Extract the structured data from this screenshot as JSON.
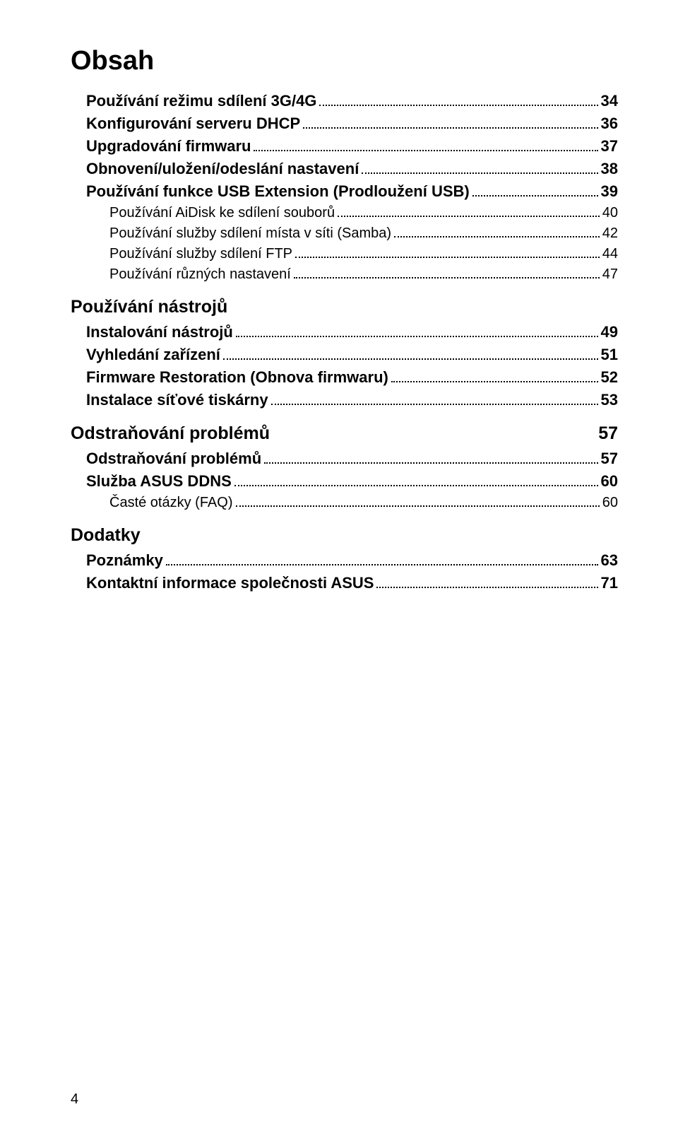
{
  "title": "Obsah",
  "page_number": "4",
  "entries": [
    {
      "level": 1,
      "label": "Používání režimu sdílení 3G/4G",
      "page": "34"
    },
    {
      "level": 1,
      "label": "Konfigurování serveru DHCP",
      "page": "36"
    },
    {
      "level": 1,
      "label": "Upgradování firmwaru",
      "page": "37"
    },
    {
      "level": 1,
      "label": "Obnovení/uložení/odeslání nastavení",
      "page": "38"
    },
    {
      "level": 1,
      "label": "Používání funkce USB Extension (Prodloužení USB)",
      "page": "39"
    },
    {
      "level": 2,
      "label": "Používání AiDisk ke sdílení souborů",
      "page": "40"
    },
    {
      "level": 2,
      "label": "Používání služby sdílení místa v síti (Samba)",
      "page": "42"
    },
    {
      "level": 2,
      "label": "Používání služby sdílení FTP",
      "page": "44"
    },
    {
      "level": 2,
      "label": "Používání různých nastavení",
      "page": "47"
    },
    {
      "level": 0,
      "label": "Používání nástrojů",
      "page": ""
    },
    {
      "level": 1,
      "label": "Instalování nástrojů",
      "page": "49"
    },
    {
      "level": 1,
      "label": "Vyhledání zařízení",
      "page": "51"
    },
    {
      "level": 1,
      "label": "Firmware Restoration (Obnova firmwaru)",
      "page": "52"
    },
    {
      "level": 1,
      "label": "Instalace síťové tiskárny",
      "page": "53"
    },
    {
      "level": 0,
      "label": "Odstraňování problémů",
      "page": "57"
    },
    {
      "level": 1,
      "label": "Odstraňování problémů",
      "page": "57"
    },
    {
      "level": 1,
      "label": "Služba ASUS DDNS",
      "page": "60"
    },
    {
      "level": 2,
      "label": "Časté otázky (FAQ)",
      "page": "60"
    },
    {
      "level": 0,
      "label": "Dodatky",
      "page": ""
    },
    {
      "level": 1,
      "label": "Poznámky",
      "page": "63"
    },
    {
      "level": 1,
      "label": "Kontaktní informace společnosti ASUS",
      "page": "71"
    }
  ]
}
